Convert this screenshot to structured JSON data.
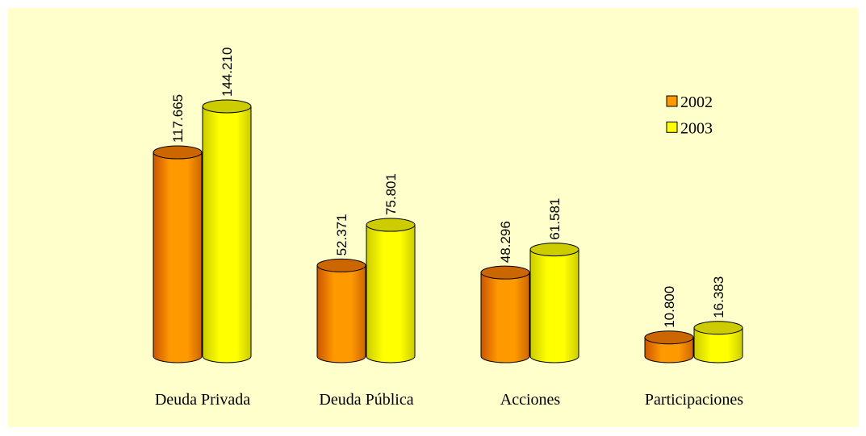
{
  "chart_data": {
    "type": "bar",
    "categories": [
      "Deuda Privada",
      "Deuda Pública",
      "Acciones",
      "Participaciones"
    ],
    "series": [
      {
        "name": "2002",
        "color": "#ff9900",
        "values": [
          117665,
          52371,
          48296,
          10800
        ],
        "value_labels": [
          "117.665",
          "52.371",
          "48.296",
          "10.800"
        ]
      },
      {
        "name": "2003",
        "color": "#ffff00",
        "values": [
          144210,
          75801,
          61581,
          16383
        ],
        "value_labels": [
          "144.210",
          "75.801",
          "61.581",
          "16.383"
        ]
      }
    ],
    "legend": "top-right"
  }
}
